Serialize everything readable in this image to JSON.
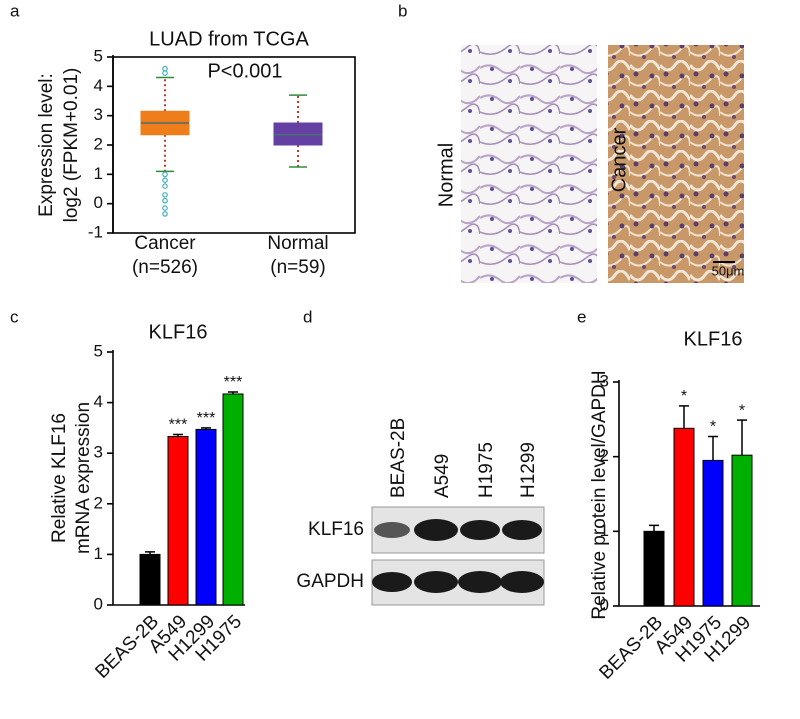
{
  "panel_labels": [
    "a",
    "b",
    "c",
    "d",
    "e"
  ],
  "chart_data": [
    {
      "type": "box",
      "title": "LUAD from TCGA",
      "ylabel": [
        "Expression level:",
        "log2 (FPKM+0.01)"
      ],
      "annotation": "P<0.001",
      "categories": [
        "Cancer",
        "Normal"
      ],
      "category_notes": [
        "(n=526)",
        "(n=59)"
      ],
      "ylim": [
        -1,
        5
      ],
      "yticks": [
        -1,
        0,
        1,
        2,
        3,
        4,
        5
      ],
      "boxes": [
        {
          "low": 1.1,
          "q1": 2.35,
          "median": 2.75,
          "q3": 3.15,
          "high": 4.3,
          "color": "#ef7d1a",
          "outliers": [
            4.45,
            4.6,
            1.0,
            0.8,
            0.6,
            0.3,
            0.1,
            -0.15,
            -0.35
          ]
        },
        {
          "low": 1.25,
          "q1": 2.0,
          "median": 2.35,
          "q3": 2.75,
          "high": 3.7,
          "color": "#6440a3"
        }
      ],
      "outlier_color": "#3fb0b8",
      "whisker_color": "#c0392b",
      "cap_color": "#2e8b3a",
      "median_color": "#4a6f70"
    },
    {
      "type": "bar",
      "title": "KLF16",
      "ylabel": [
        "Relative KLF16",
        "mRNA expression"
      ],
      "categories": [
        "BEAS-2B",
        "A549",
        "H1299",
        "H1975"
      ],
      "values": [
        1.0,
        3.33,
        3.47,
        4.17
      ],
      "errors": [
        0.05,
        0.04,
        0.03,
        0.04
      ],
      "significance": [
        null,
        "***",
        "***",
        "***"
      ],
      "colors": [
        "#000000",
        "#ff0000",
        "#0000ff",
        "#00b000"
      ],
      "ylim": [
        0,
        5
      ],
      "yticks": [
        0,
        1,
        2,
        3,
        4,
        5
      ]
    },
    {
      "type": "bar",
      "title": "KLF16",
      "ylabel": [
        "Relative protein level/GAPDH"
      ],
      "categories": [
        "BEAS-2B",
        "A549",
        "H1975",
        "H1299"
      ],
      "values": [
        1.0,
        2.38,
        1.95,
        2.02
      ],
      "errors": [
        0.08,
        0.3,
        0.32,
        0.47
      ],
      "significance": [
        null,
        "*",
        "*",
        "*"
      ],
      "colors": [
        "#000000",
        "#ff0000",
        "#0000ff",
        "#00b000"
      ],
      "ylim": [
        0,
        3
      ],
      "yticks": [
        0,
        1,
        2,
        3
      ]
    }
  ],
  "images": {
    "labels": [
      "Normal",
      "Cancer"
    ],
    "scale_bar": "50μm"
  },
  "blot": {
    "lanes": [
      "BEAS-2B",
      "A549",
      "H1975",
      "H1299"
    ],
    "rows": [
      "KLF16",
      "GAPDH"
    ]
  }
}
